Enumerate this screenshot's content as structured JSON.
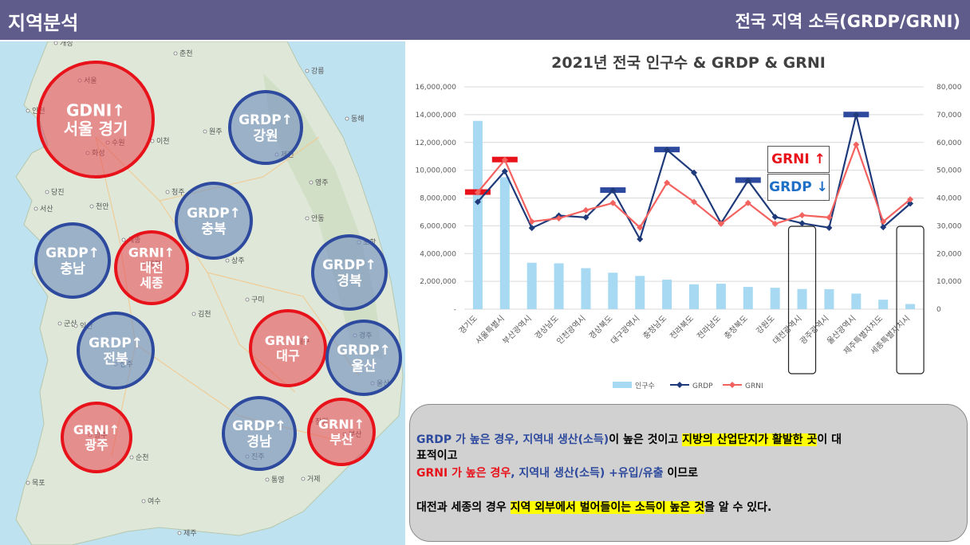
{
  "header": {
    "left_title": "지역분석",
    "right_title": "전국 지역 소득(GRDP/GRNI)"
  },
  "map": {
    "circles": [
      {
        "key": "seoul",
        "color": "red",
        "lines": [
          "GDNI↑",
          "서울 경기"
        ]
      },
      {
        "key": "gangwon",
        "color": "blue",
        "lines": [
          "GRDP↑",
          "강원"
        ]
      },
      {
        "key": "chungbuk",
        "color": "blue",
        "lines": [
          "GRDP↑",
          "충북"
        ]
      },
      {
        "key": "chungnam",
        "color": "blue",
        "lines": [
          "GRDP↑",
          "충남"
        ]
      },
      {
        "key": "daejeon",
        "color": "red",
        "lines": [
          "GRNI↑",
          "대전",
          "세종"
        ]
      },
      {
        "key": "gyeongbuk",
        "color": "blue",
        "lines": [
          "GRDP↑",
          "경북"
        ]
      },
      {
        "key": "jeonbuk",
        "color": "blue",
        "lines": [
          "GRDP↑",
          "전북"
        ]
      },
      {
        "key": "daegu",
        "color": "red",
        "lines": [
          "GRNI↑",
          "대구"
        ]
      },
      {
        "key": "ulsan",
        "color": "blue",
        "lines": [
          "GRDP↑",
          "울산"
        ]
      },
      {
        "key": "gwangju",
        "color": "red",
        "lines": [
          "GRNI↑",
          "광주"
        ]
      },
      {
        "key": "gyeongnam",
        "color": "blue",
        "lines": [
          "GRDP↑",
          "경남"
        ]
      },
      {
        "key": "busan",
        "color": "red",
        "lines": [
          "GRNI↑",
          "부산"
        ]
      }
    ],
    "city_labels": [
      "개성",
      "춘천",
      "강릉",
      "동해",
      "서울",
      "인천",
      "원주",
      "수원",
      "화성",
      "이천",
      "당진",
      "청주",
      "제천",
      "영주",
      "서산",
      "천안",
      "안동",
      "세종",
      "포항",
      "대전",
      "상주",
      "경주",
      "구미",
      "군산",
      "김천",
      "익산",
      "울산",
      "전주",
      "대구",
      "부산",
      "창원",
      "진주",
      "광주",
      "목포",
      "순천",
      "여수",
      "통영",
      "거제",
      "제주"
    ]
  },
  "chart_data": {
    "type": "bar",
    "title": "2021년 전국 인구수 & GRDP & GRNI",
    "categories": [
      "경기도",
      "서울특별시",
      "부산광역시",
      "경상남도",
      "인천광역시",
      "경상북도",
      "대구광역시",
      "충청남도",
      "전라북도",
      "전라남도",
      "충청북도",
      "강원도",
      "대전광역시",
      "광주광역시",
      "울산광역시",
      "제주특별자치도",
      "세종특별자치시"
    ],
    "series": [
      {
        "name": "인구수",
        "type": "bar",
        "axis": "left",
        "color": "#a7d9f2",
        "values": [
          13550000,
          9500000,
          3340000,
          3300000,
          2950000,
          2620000,
          2390000,
          2120000,
          1790000,
          1830000,
          1600000,
          1540000,
          1450000,
          1440000,
          1120000,
          680000,
          370000
        ]
      },
      {
        "name": "GRDP",
        "type": "line",
        "axis": "right",
        "color": "#1f3a7a",
        "values": [
          38600,
          49600,
          29200,
          33700,
          33000,
          42700,
          25200,
          57300,
          49100,
          30900,
          46300,
          33200,
          30900,
          29300,
          69900,
          29500,
          38000
        ]
      },
      {
        "name": "GRNI",
        "type": "line",
        "axis": "right",
        "color": "#f4625f",
        "values": [
          42000,
          53700,
          31500,
          32700,
          35600,
          38200,
          29400,
          45500,
          38600,
          30700,
          38200,
          30700,
          33800,
          33000,
          59200,
          31500,
          39500
        ]
      }
    ],
    "yleft": {
      "ticks": [
        "-",
        "2,000,000",
        "4,000,000",
        "6,000,000",
        "8,000,000",
        "10,000,000",
        "12,000,000",
        "14,000,000",
        "16,000,000"
      ],
      "range": [
        0,
        16000000
      ]
    },
    "yright": {
      "ticks": [
        "0",
        "10,000",
        "20,000",
        "30,000",
        "40,000",
        "50,000",
        "60,000",
        "70,000",
        "80,000"
      ],
      "range": [
        0,
        80000
      ]
    },
    "legend": {
      "placement": "bottom",
      "items": [
        "인구수",
        "GRDP",
        "GRNI"
      ]
    },
    "grid": true,
    "highlight_markers": [
      {
        "category": "경기도",
        "color": "#e8121b"
      },
      {
        "category": "서울특별시",
        "color": "#e8121b"
      },
      {
        "category": "경상북도",
        "color": "#2e4a9e"
      },
      {
        "category": "충청남도",
        "color": "#2e4a9e"
      },
      {
        "category": "충청북도",
        "color": "#2e4a9e"
      },
      {
        "category": "울산광역시",
        "color": "#2e4a9e"
      }
    ],
    "callouts": {
      "grni": "GRNI ↑",
      "grdp": "GRDP ↓"
    }
  },
  "note": {
    "line1_a": "GRDP 가 높은 경우",
    "line1_b": ", 지역내 생산(소득)",
    "line1_c": "이 높은 것이고 ",
    "line1_d": "지방의 산업단지가 활발한 곳",
    "line1_e": "이 대",
    "line2": "표적이고",
    "line3_a": "GRNI 가 높은 경우",
    "line3_b": ", 지역내 생산(소득) +유입/유출",
    "line3_c": " 이므로",
    "line4_a": "대전과 세종의 경우 ",
    "line4_b": "지역 외부에서 벌어들이는 소득이 높은 것",
    "line4_c": "을 알 수 있다."
  }
}
